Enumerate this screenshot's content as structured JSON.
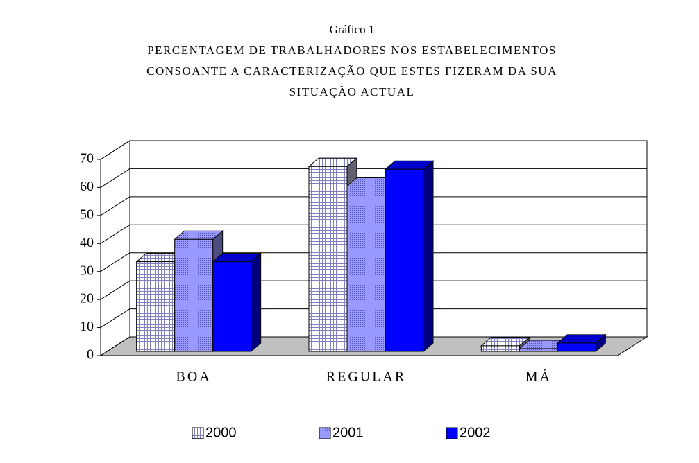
{
  "chart_data": {
    "type": "bar3d",
    "title": "Gráfico 1",
    "subtitle": [
      "PERCENTAGEM DE TRABALHADORES NOS ESTABELECIMENTOS",
      "CONSOANTE A CARACTERIZAÇÃO QUE ESTES FIZERAM DA SUA",
      "SITUAÇÃO ACTUAL"
    ],
    "categories": [
      "BOA",
      "REGULAR",
      "MÁ"
    ],
    "series": [
      {
        "name": "2000",
        "color": "#ffffff",
        "pattern": "grid",
        "values": [
          32,
          66,
          2
        ]
      },
      {
        "name": "2001",
        "color": "#9999ff",
        "pattern": "dots",
        "values": [
          40,
          59,
          1
        ]
      },
      {
        "name": "2002",
        "color": "#0000ff",
        "values": [
          32,
          65,
          3
        ]
      }
    ],
    "ylim": [
      0,
      70
    ],
    "yticks": [
      0,
      10,
      20,
      30,
      40,
      50,
      60,
      70
    ],
    "grid": true,
    "legend": "bottom"
  }
}
